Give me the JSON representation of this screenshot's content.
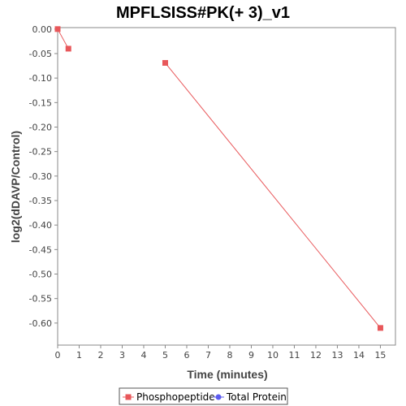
{
  "chart_data": {
    "type": "line",
    "title": "MPFLSISS#PK(+ 3)_v1",
    "xlabel": "Time (minutes)",
    "ylabel": "log2(dDAVP/Control)",
    "xlim": [
      0,
      15.7
    ],
    "ylim": [
      -0.645,
      0.003
    ],
    "x_ticks": [
      0,
      1,
      2,
      3,
      4,
      5,
      6,
      7,
      8,
      9,
      10,
      11,
      12,
      13,
      14,
      15
    ],
    "y_ticks": [
      0.0,
      -0.05,
      -0.1,
      -0.15,
      -0.2,
      -0.25,
      -0.3,
      -0.35,
      -0.4,
      -0.45,
      -0.5,
      -0.55,
      -0.6
    ],
    "y_tick_labels": [
      "0.00",
      "-0.05",
      "-0.10",
      "-0.15",
      "-0.20",
      "-0.25",
      "-0.30",
      "-0.35",
      "-0.40",
      "-0.45",
      "-0.50",
      "-0.55",
      "-0.60"
    ],
    "grid": false,
    "legend_position": "bottom",
    "series": [
      {
        "name": "Phosphopeptide",
        "color": "#e8575a",
        "marker": "square",
        "segments": [
          [
            {
              "x": 0,
              "y": 0.0
            },
            {
              "x": 0.5,
              "y": -0.04
            }
          ],
          [
            {
              "x": 5,
              "y": -0.069
            },
            {
              "x": 15,
              "y": -0.61
            }
          ]
        ]
      },
      {
        "name": "Total Protein",
        "color": "#5b5bef",
        "marker": "circle",
        "segments": []
      }
    ]
  }
}
